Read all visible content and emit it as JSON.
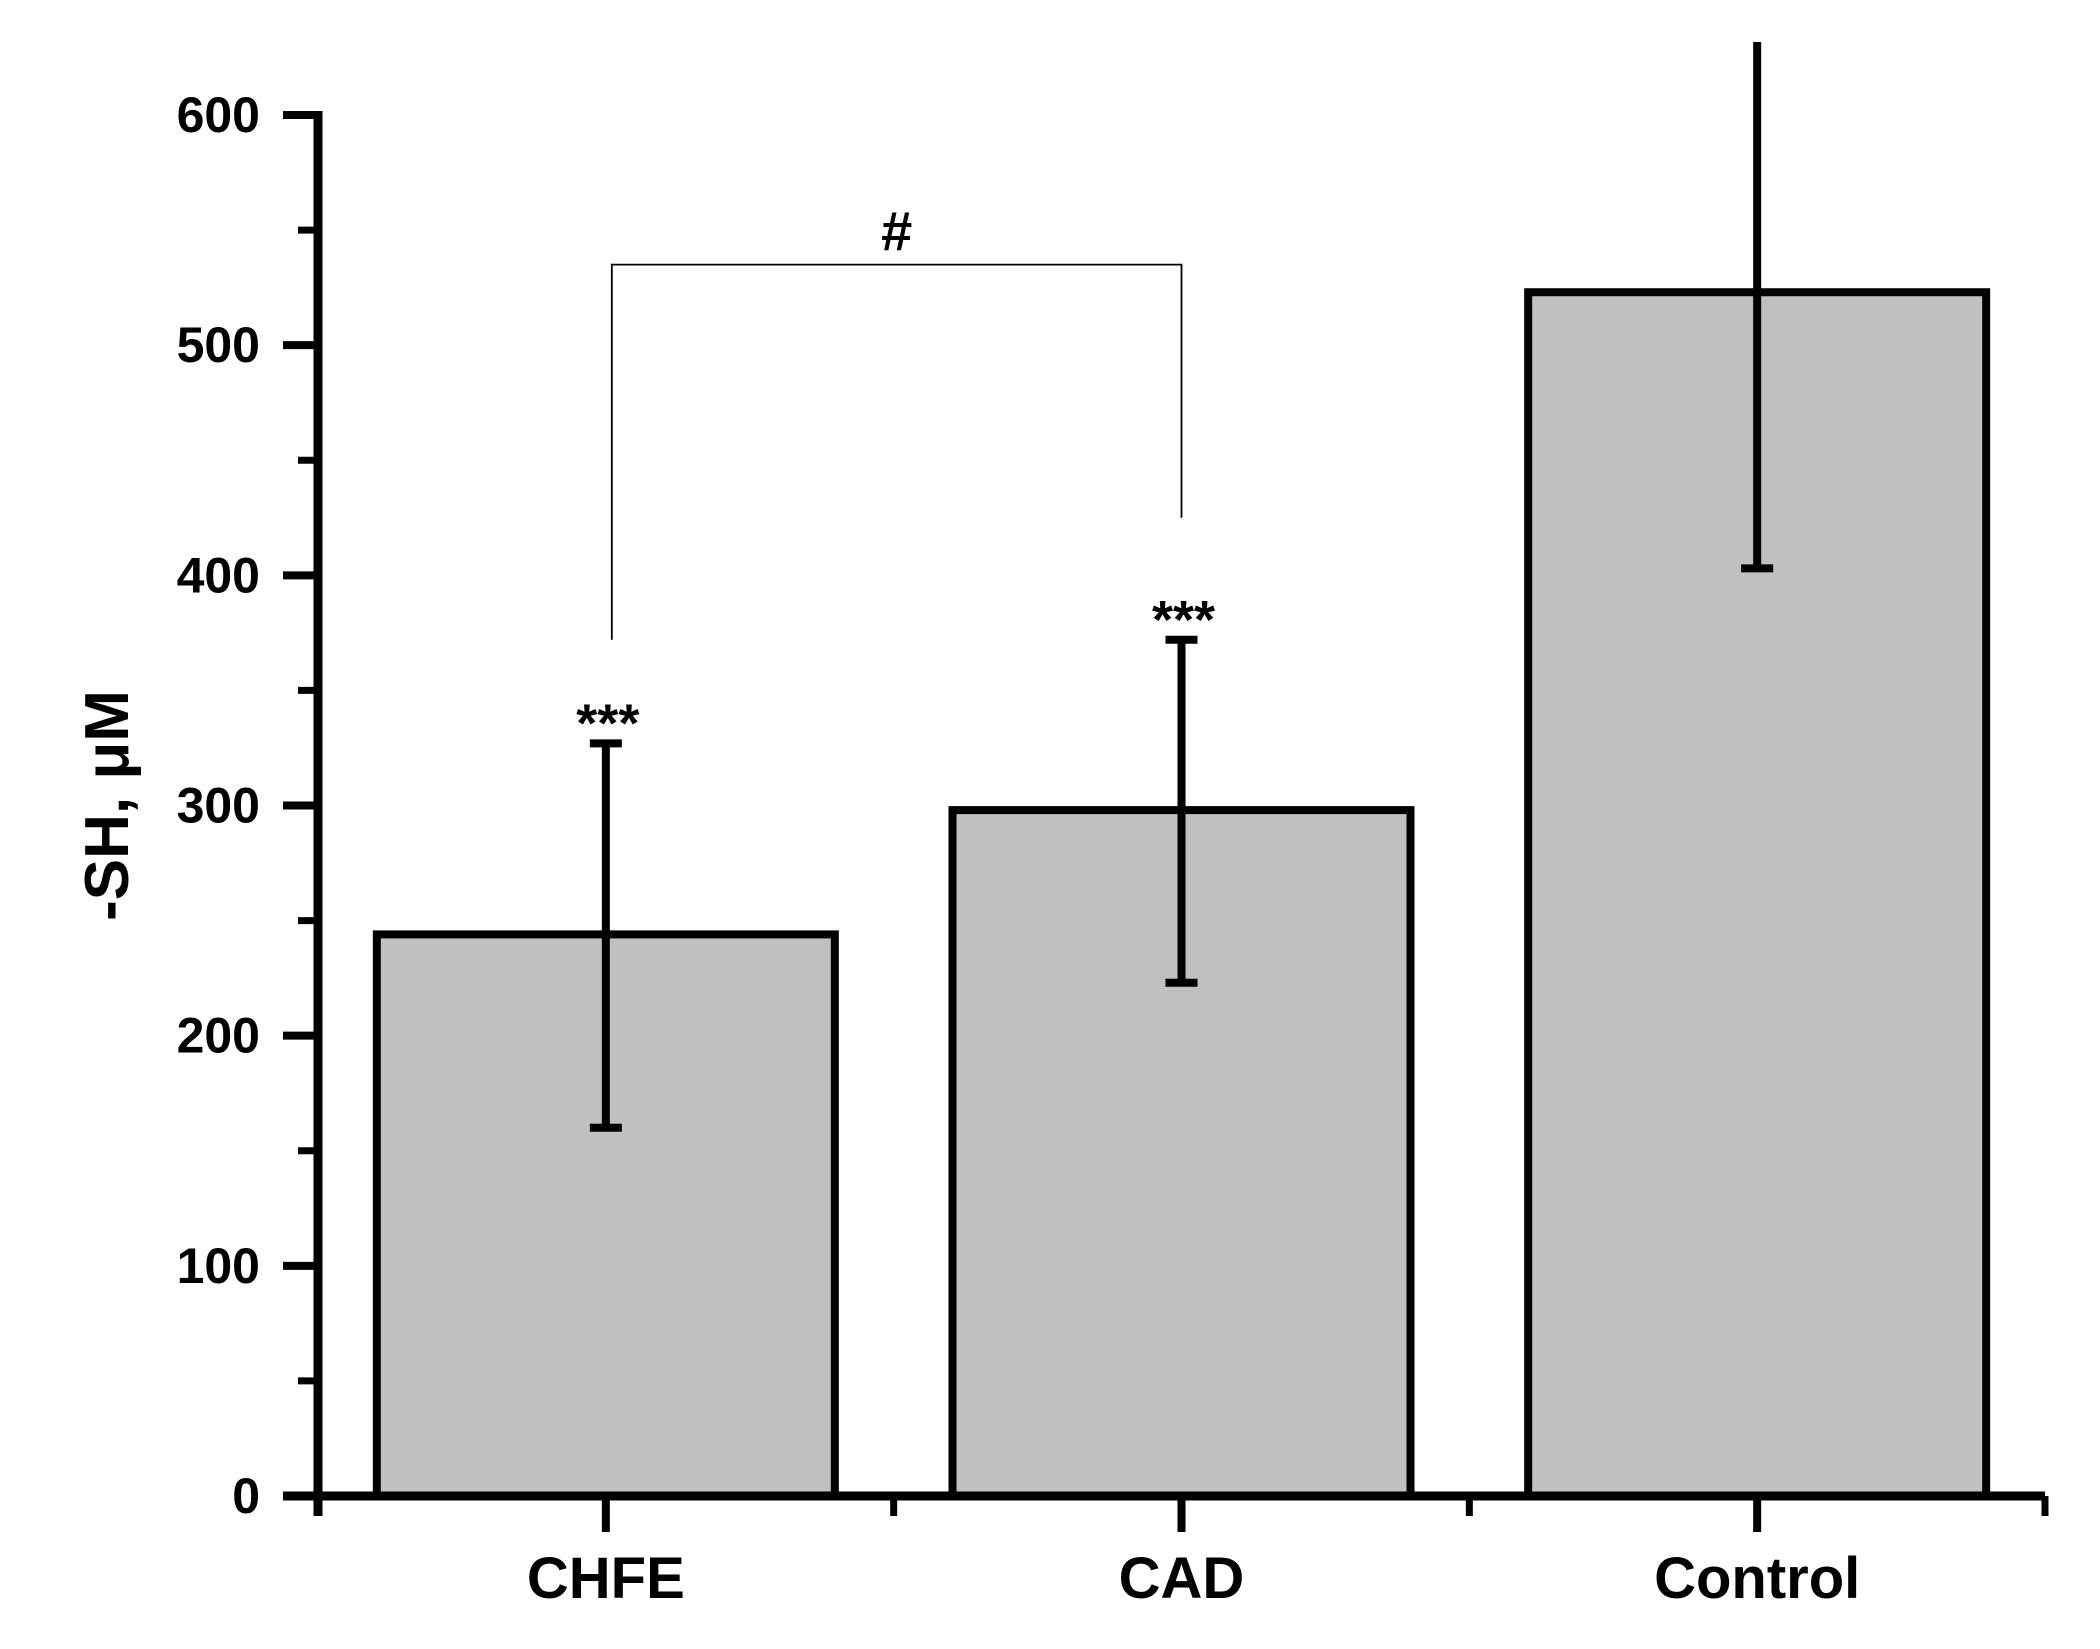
{
  "chart_data": {
    "type": "bar",
    "title": "",
    "xlabel": "",
    "ylabel": "-SH, μM",
    "ylim": [
      0,
      600
    ],
    "yticks": [
      0,
      100,
      200,
      300,
      400,
      500,
      600
    ],
    "grid": false,
    "categories": [
      "CHFE",
      "CAD",
      "Control"
    ],
    "values": [
      244,
      298,
      523
    ],
    "error": [
      {
        "lower": 160,
        "upper": 327
      },
      {
        "lower": 223,
        "upper": 372
      },
      {
        "lower": 403,
        "upper": 645
      }
    ],
    "annotations": [
      {
        "category": "CHFE",
        "text": "***"
      },
      {
        "category": "CAD",
        "text": "***"
      }
    ],
    "comparison": {
      "from": "CHFE",
      "to": "CAD",
      "text": "#",
      "level": 535,
      "left_end": 372,
      "right_end": 425
    },
    "colors": {
      "bar_fill": "#c0c0c0",
      "bar_stroke": "#000000",
      "axis": "#000000"
    }
  }
}
